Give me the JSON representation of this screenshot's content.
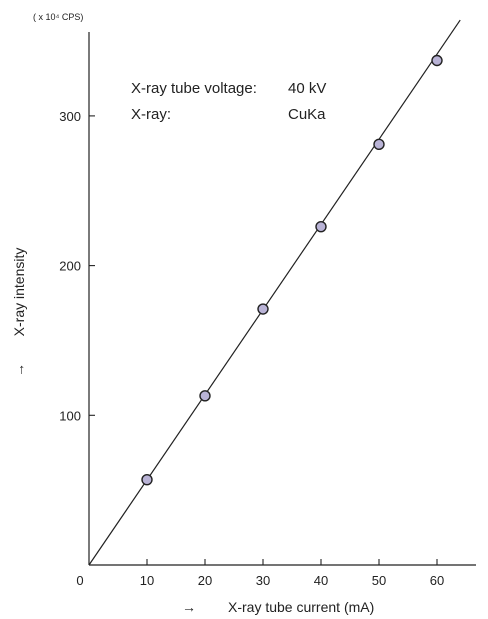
{
  "chart_data": {
    "type": "scatter",
    "title": "",
    "xlabel": "X-ray tube current (mA)",
    "ylabel": "X-ray intensity",
    "y_unit": "( x 10⁴ CPS)",
    "arrow_symbol": "→",
    "x_ticks": [
      10,
      20,
      30,
      40,
      50,
      60
    ],
    "y_ticks": [
      100,
      200,
      300
    ],
    "origin_label": "0",
    "xlim": [
      0,
      68
    ],
    "ylim": [
      0,
      355
    ],
    "grid": false,
    "legend": "none",
    "series": [
      {
        "x": [
          10,
          20,
          30,
          40,
          50,
          60
        ],
        "y": [
          57,
          113,
          171,
          226,
          281,
          337
        ]
      }
    ],
    "fit_line": {
      "x": [
        0,
        64
      ],
      "y": [
        0,
        364
      ]
    },
    "annotations": [
      {
        "label": "X-ray tube voltage:",
        "value": "40 kV"
      },
      {
        "label": "X-ray:",
        "value": "CuKa"
      }
    ],
    "colors": {
      "marker_fill": "#b9b3d6",
      "marker_stroke": "#222222",
      "line": "#222222"
    }
  }
}
